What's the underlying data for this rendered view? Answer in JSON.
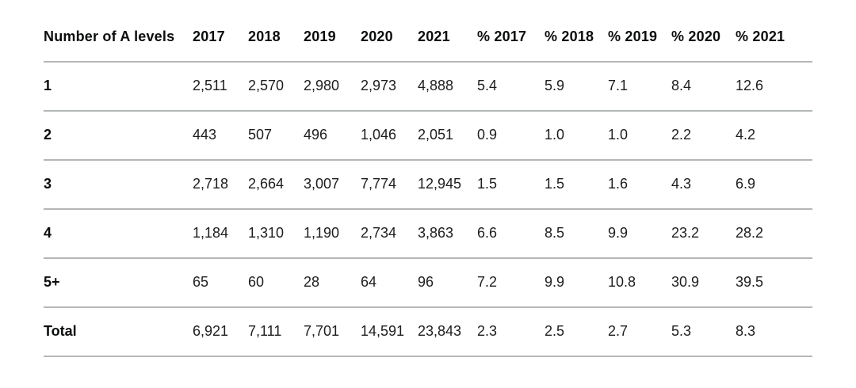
{
  "colors": {
    "background": "#ffffff",
    "text": "#1d1d1d",
    "header_text": "#0b0c0c",
    "border": "#b4b7b9"
  },
  "chart_data": {
    "type": "table",
    "title": "",
    "columns": [
      "Number of A levels",
      "2017",
      "2018",
      "2019",
      "2020",
      "2021",
      "% 2017",
      "% 2018",
      "% 2019",
      "% 2020",
      "% 2021"
    ],
    "rows": [
      {
        "label": "1",
        "values": [
          "2,511",
          "2,570",
          "2,980",
          "2,973",
          "4,888",
          "5.4",
          "5.9",
          "7.1",
          "8.4",
          "12.6"
        ]
      },
      {
        "label": "2",
        "values": [
          "443",
          "507",
          "496",
          "1,046",
          "2,051",
          "0.9",
          "1.0",
          "1.0",
          "2.2",
          "4.2"
        ]
      },
      {
        "label": "3",
        "values": [
          "2,718",
          "2,664",
          "3,007",
          "7,774",
          "12,945",
          "1.5",
          "1.5",
          "1.6",
          "4.3",
          "6.9"
        ]
      },
      {
        "label": "4",
        "values": [
          "1,184",
          "1,310",
          "1,190",
          "2,734",
          "3,863",
          "6.6",
          "8.5",
          "9.9",
          "23.2",
          "28.2"
        ]
      },
      {
        "label": "5+",
        "values": [
          "65",
          "60",
          "28",
          "64",
          "96",
          "7.2",
          "9.9",
          "10.8",
          "30.9",
          "39.5"
        ]
      },
      {
        "label": "Total",
        "values": [
          "6,921",
          "7,111",
          "7,701",
          "14,591",
          "23,843",
          "2.3",
          "2.5",
          "2.7",
          "5.3",
          "8.3"
        ]
      }
    ]
  }
}
